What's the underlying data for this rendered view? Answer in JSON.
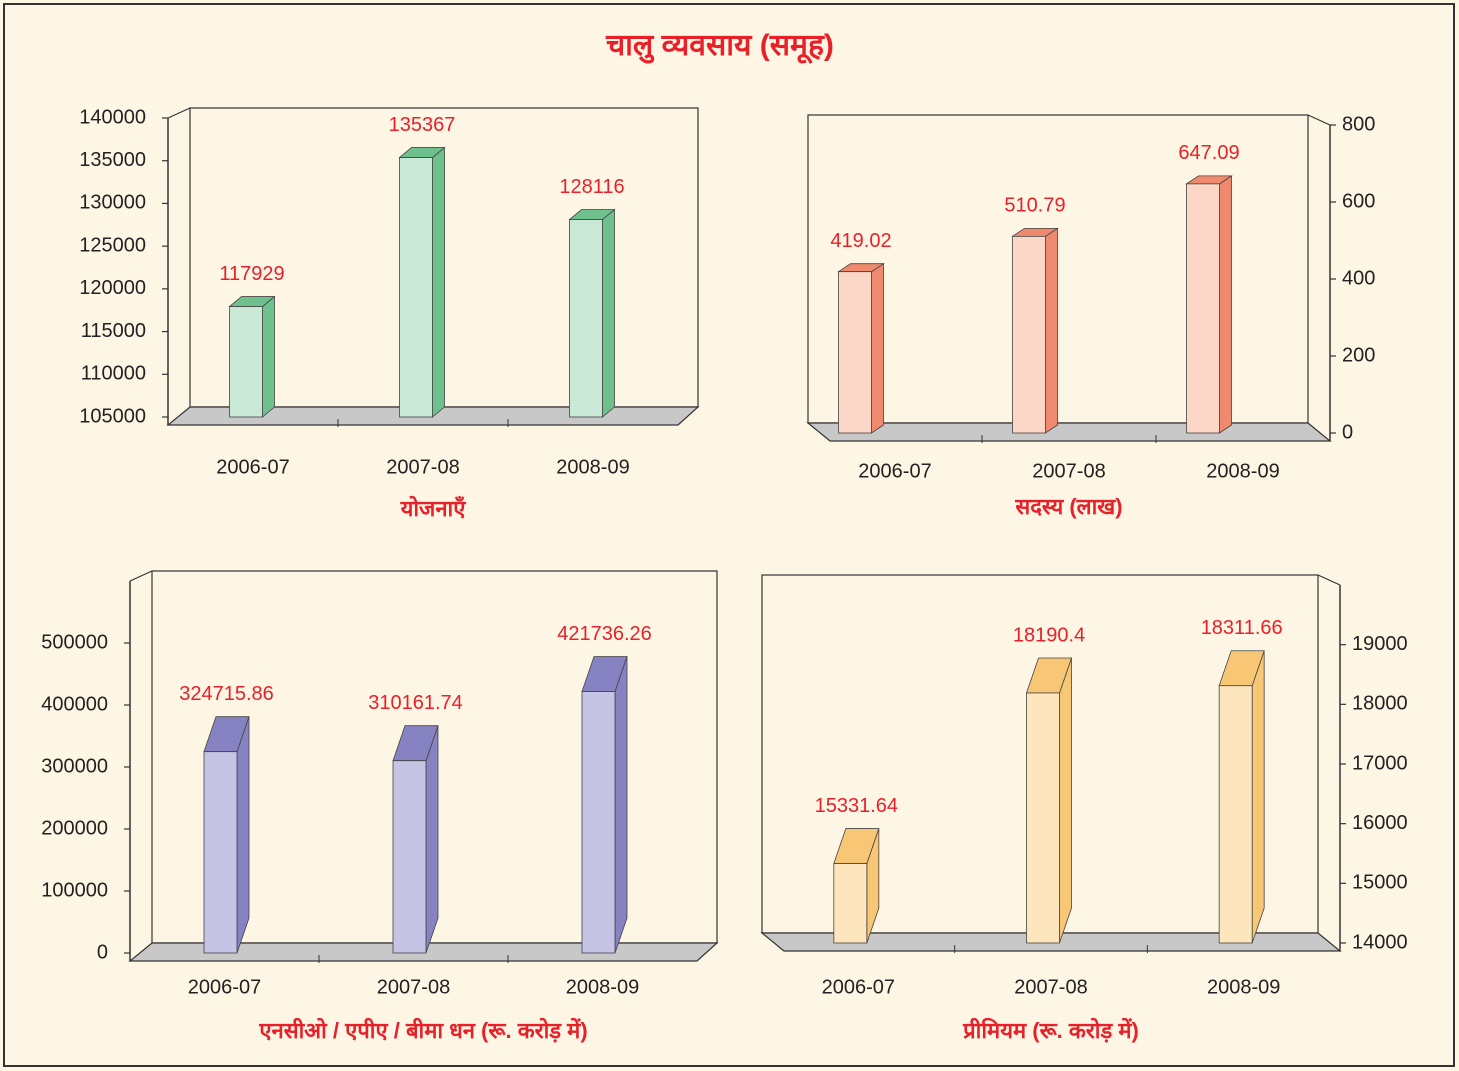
{
  "title": "चालु व्यवसाय (समूह)",
  "chart_data": [
    {
      "type": "bar",
      "xlabel": "योजनाएँ",
      "categories": [
        "2006-07",
        "2007-08",
        "2008-09"
      ],
      "values": [
        117929,
        135367,
        128116
      ],
      "ylim": [
        105000,
        140000
      ],
      "yticks": [
        105000,
        110000,
        115000,
        120000,
        125000,
        130000,
        135000,
        140000
      ],
      "y_axis_side": "left",
      "color": "#c9e8d6",
      "edge_color": "#6ec08c"
    },
    {
      "type": "bar",
      "xlabel": "सदस्य (लाख)",
      "categories": [
        "2006-07",
        "2007-08",
        "2008-09"
      ],
      "values": [
        419.02,
        510.79,
        647.09
      ],
      "ylim": [
        0,
        800
      ],
      "yticks": [
        0,
        200,
        400,
        600,
        800
      ],
      "y_axis_side": "right",
      "color": "#fcd6c6",
      "edge_color": "#f08a6e"
    },
    {
      "type": "bar",
      "xlabel": "एनसीओ / एपीए / बीमा धन  (रू. करोड़ में)",
      "categories": [
        "2006-07",
        "2007-08",
        "2008-09"
      ],
      "values": [
        324715.86,
        310161.74,
        421736.26
      ],
      "ylim": [
        0,
        600000
      ],
      "yticks": [
        0,
        100000,
        200000,
        300000,
        400000,
        500000
      ],
      "y_axis_side": "left",
      "color": "#c6c4e4",
      "edge_color": "#8782c2"
    },
    {
      "type": "bar",
      "xlabel": "प्रीमियम (रू. करोड़ में)",
      "categories": [
        "2006-07",
        "2007-08",
        "2008-09"
      ],
      "values": [
        15331.64,
        18190.4,
        18311.66
      ],
      "ylim": [
        14000,
        20000
      ],
      "yticks": [
        14000,
        15000,
        16000,
        17000,
        18000,
        19000
      ],
      "y_axis_side": "right",
      "color": "#fde6bd",
      "edge_color": "#f7c776"
    }
  ]
}
